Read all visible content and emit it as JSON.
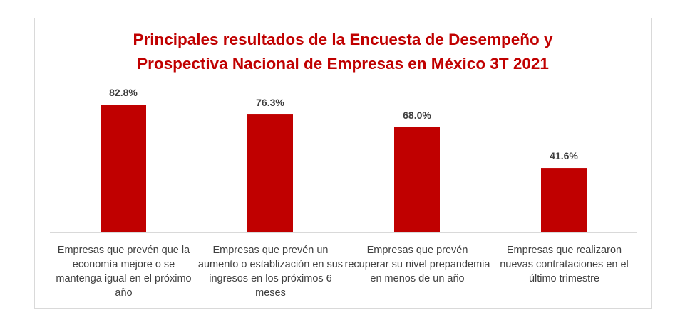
{
  "chart_data": {
    "type": "bar",
    "title": "Principales resultados de la Encuesta de Desempeño y\nProspectiva Nacional de Empresas en México 3T 2021",
    "categories": [
      "Empresas que prevén que la economía mejore o se mantenga igual en el próximo año",
      "Empresas que prevén un aumento o establización en sus ingresos en los próximos 6 meses",
      "Empresas que prevén recuperar su nivel prepandemia en menos de un año",
      "Empresas que realizaron nuevas contrataciones en el último trimestre"
    ],
    "values": [
      82.8,
      76.3,
      68.0,
      41.6
    ],
    "value_labels": [
      "82.8%",
      "76.3%",
      "68.0%",
      "41.6%"
    ],
    "ylim": [
      0,
      100
    ],
    "bar_color": "#c00000",
    "grid": false,
    "legend": false
  }
}
